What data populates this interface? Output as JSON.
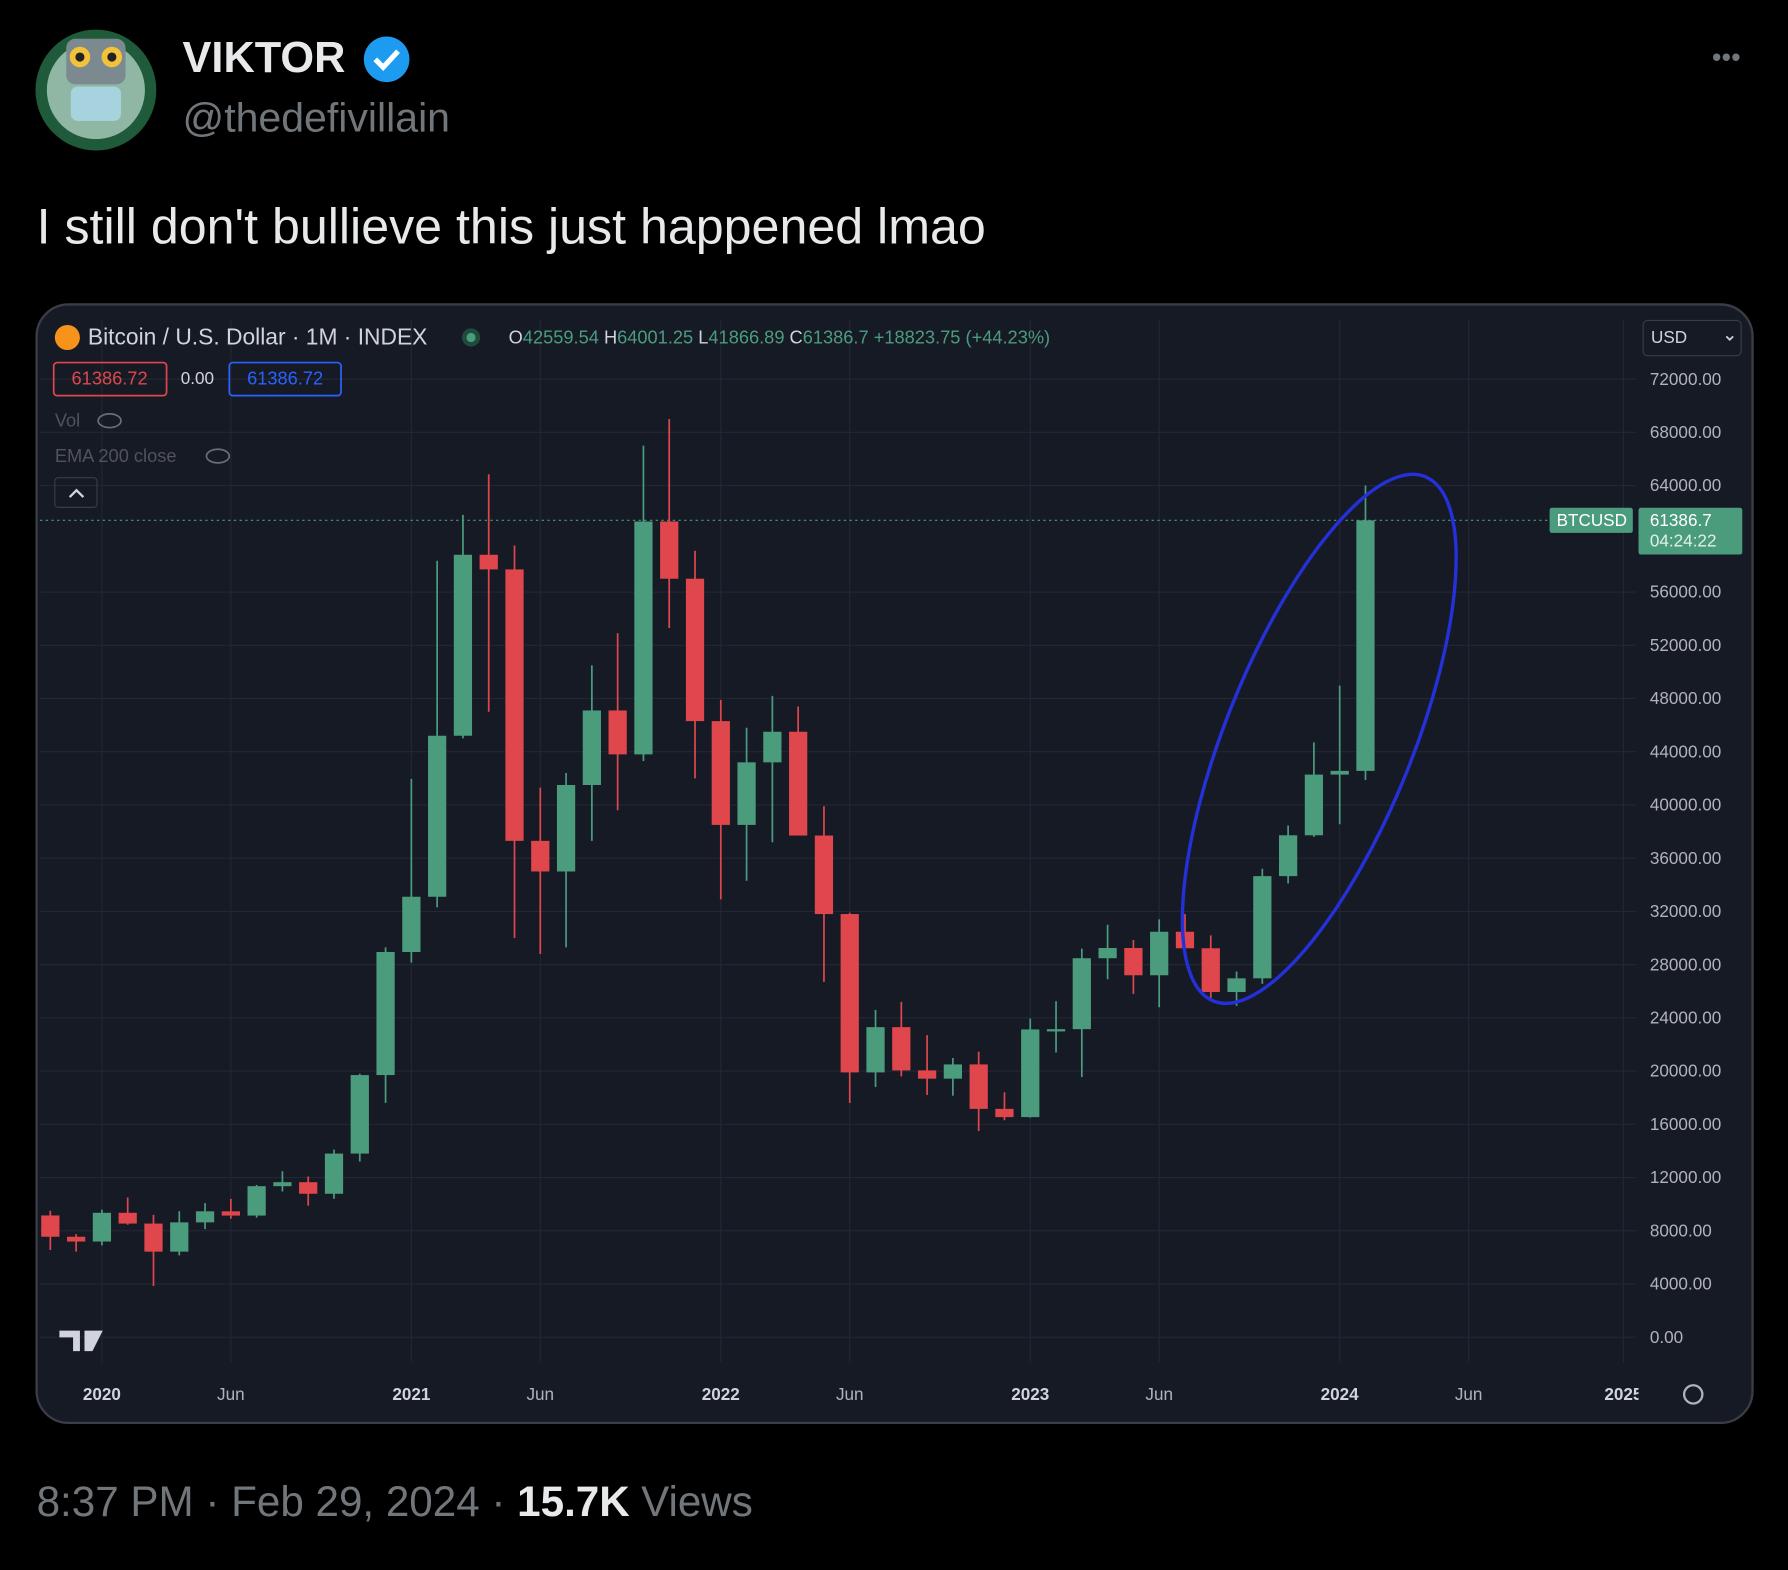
{
  "tweet": {
    "name": "VIKTOR",
    "handle": "@thedefivillain",
    "text": "I still don't bullieve this just happened lmao",
    "timestamp": "8:37 PM · Feb 29, 2024 · ",
    "views_count": "15.7K",
    "views_label": "Views",
    "more": "•••"
  },
  "chart_data": {
    "type": "candlestick",
    "title": "Bitcoin / U.S. Dollar · 1M · INDEX",
    "ohlc_labels": [
      "O",
      "H",
      "L",
      "C"
    ],
    "change": "+18823.75 (+44.23%)",
    "price_boxes": [
      "61386.72",
      "0.00",
      "61386.72"
    ],
    "indicators": [
      "Vol",
      "EMA 200 close"
    ],
    "currency": "USD",
    "symbol_tag": "BTCUSD",
    "countdown": "04:24:22",
    "up_color": "#4b9c7d",
    "down_color": "#e0474c",
    "grid": true,
    "x": [
      0,
      1,
      2,
      3,
      4,
      5,
      6,
      7,
      8,
      9,
      10,
      11,
      12,
      13,
      14,
      15,
      16,
      17,
      18,
      19,
      20,
      21,
      22,
      23,
      24,
      25,
      26,
      27,
      28,
      29,
      30,
      31,
      32,
      33,
      34,
      35,
      36,
      37,
      38,
      39,
      40,
      41,
      42,
      43,
      44,
      45,
      46,
      47,
      48,
      49,
      50,
      51
    ],
    "open": [
      9150,
      7550,
      7190,
      9350,
      8540,
      6430,
      8630,
      9460,
      9140,
      11350,
      11650,
      10780,
      13800,
      19700,
      28950,
      33100,
      45200,
      58800,
      57700,
      37300,
      35000,
      41500,
      47100,
      43800,
      61300,
      57000,
      46300,
      38500,
      43200,
      45500,
      37700,
      31800,
      19900,
      23300,
      20050,
      19430,
      20500,
      17160,
      16540,
      23130,
      23150,
      28480,
      29250,
      27200,
      30470,
      29230,
      25940,
      26970,
      34650,
      37720,
      42280,
      42559.54
    ],
    "high": [
      9500,
      7750,
      9580,
      10500,
      9200,
      9470,
      10080,
      10400,
      11440,
      12470,
      12080,
      14100,
      19800,
      29300,
      41950,
      58350,
      61800,
      64850,
      59500,
      41300,
      42400,
      50500,
      52900,
      67000,
      69000,
      59100,
      47900,
      45800,
      48200,
      47400,
      39900,
      31900,
      24600,
      25200,
      22700,
      20980,
      21450,
      18400,
      23950,
      25250,
      29200,
      31000,
      29850,
      31400,
      31800,
      30200,
      27480,
      35200,
      38450,
      44700,
      48970,
      64001.25
    ],
    "low": [
      6550,
      6430,
      6900,
      8450,
      3850,
      6150,
      8120,
      8900,
      8980,
      10950,
      9880,
      10400,
      13200,
      17600,
      28150,
      32300,
      45000,
      47000,
      30000,
      28800,
      29300,
      37300,
      39600,
      43300,
      53300,
      42000,
      32900,
      34300,
      37200,
      37700,
      26700,
      17600,
      18800,
      19600,
      18200,
      18150,
      15500,
      16300,
      16500,
      21400,
      19550,
      26900,
      25800,
      24800,
      28850,
      25350,
      24900,
      26550,
      34100,
      37600,
      38550,
      41866.89
    ],
    "close": [
      7550,
      7190,
      9350,
      8540,
      6430,
      8630,
      9460,
      9140,
      11350,
      11650,
      10780,
      13800,
      19700,
      28950,
      33100,
      45200,
      58800,
      57700,
      37300,
      35000,
      41500,
      47100,
      43800,
      61300,
      57000,
      46300,
      38500,
      43200,
      45500,
      37700,
      31800,
      19900,
      23300,
      20050,
      19430,
      20500,
      17160,
      16540,
      23130,
      23150,
      28480,
      29250,
      27200,
      30470,
      29230,
      25940,
      26970,
      34650,
      37720,
      42280,
      42560,
      61386.7
    ],
    "xlim": [
      -0.4,
      61.5
    ],
    "xticks": [
      {
        "value": 2,
        "label": "2020"
      },
      {
        "value": 7,
        "label": "Jun"
      },
      {
        "value": 14,
        "label": "2021"
      },
      {
        "value": 19,
        "label": "Jun"
      },
      {
        "value": 26,
        "label": "2022"
      },
      {
        "value": 31,
        "label": "Jun"
      },
      {
        "value": 38,
        "label": "2023"
      },
      {
        "value": 43,
        "label": "Jun"
      },
      {
        "value": 50,
        "label": "2024"
      },
      {
        "value": 55,
        "label": "Jun"
      },
      {
        "value": 61,
        "label": "2025"
      }
    ],
    "ylim": [
      -1900,
      76500
    ],
    "yticks": [
      {
        "value": 0,
        "label": "0.00"
      },
      {
        "value": 4000,
        "label": "4000.00"
      },
      {
        "value": 8000,
        "label": "8000.00"
      },
      {
        "value": 12000,
        "label": "12000.00"
      },
      {
        "value": 16000,
        "label": "16000.00"
      },
      {
        "value": 20000,
        "label": "20000.00"
      },
      {
        "value": 24000,
        "label": "24000.00"
      },
      {
        "value": 28000,
        "label": "28000.00"
      },
      {
        "value": 32000,
        "label": "32000.00"
      },
      {
        "value": 36000,
        "label": "36000.00"
      },
      {
        "value": 40000,
        "label": "40000.00"
      },
      {
        "value": 44000,
        "label": "44000.00"
      },
      {
        "value": 48000,
        "label": "48000.00"
      },
      {
        "value": 52000,
        "label": "52000.00"
      },
      {
        "value": 56000,
        "label": "56000.00"
      },
      {
        "value": 64000,
        "label": "64000.00"
      },
      {
        "value": 68000,
        "label": "68000.00"
      },
      {
        "value": 72000,
        "label": "72000.00"
      }
    ]
  }
}
